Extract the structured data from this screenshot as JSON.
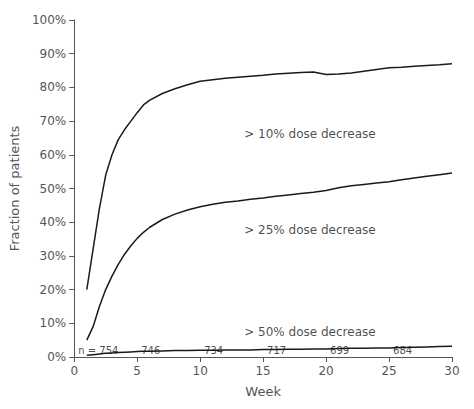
{
  "chart_data": {
    "type": "line",
    "xlabel": "Week",
    "ylabel": "Fraction of patients",
    "xlim": [
      0,
      30
    ],
    "ylim": [
      0,
      1.0
    ],
    "xticks": [
      0,
      5,
      10,
      15,
      20,
      25,
      30
    ],
    "yticks": [
      {
        "value": 0,
        "label": "0%"
      },
      {
        "value": 0.1,
        "label": "10%"
      },
      {
        "value": 0.2,
        "label": "20%"
      },
      {
        "value": 0.3,
        "label": "30%"
      },
      {
        "value": 0.4,
        "label": "40%"
      },
      {
        "value": 0.5,
        "label": "50%"
      },
      {
        "value": 0.6,
        "label": "60%"
      },
      {
        "value": 0.7,
        "label": "70%"
      },
      {
        "value": 0.8,
        "label": "80%"
      },
      {
        "value": 0.9,
        "label": "90%"
      },
      {
        "value": 1.0,
        "label": "100%"
      }
    ],
    "grid": false,
    "color": "#1a1a1a",
    "x": [
      1,
      1.5,
      2,
      2.5,
      3,
      3.5,
      4,
      4.5,
      5,
      5.5,
      6,
      7,
      8,
      9,
      10,
      11,
      12,
      13,
      14,
      15,
      16,
      17,
      18,
      19,
      20,
      21,
      22,
      23,
      24,
      25,
      26,
      27,
      28,
      29,
      30
    ],
    "series": [
      {
        "color": "#1a1a1a",
        "values": [
          0.2,
          0.32,
          0.44,
          0.54,
          0.6,
          0.645,
          0.675,
          0.7,
          0.725,
          0.748,
          0.762,
          0.782,
          0.796,
          0.808,
          0.818,
          0.823,
          0.827,
          0.83,
          0.833,
          0.836,
          0.84,
          0.842,
          0.844,
          0.846,
          0.838,
          0.84,
          0.843,
          0.848,
          0.853,
          0.858,
          0.86,
          0.863,
          0.865,
          0.867,
          0.87
        ]
      },
      {
        "color": "#1a1a1a",
        "values": [
          0.05,
          0.09,
          0.15,
          0.2,
          0.24,
          0.275,
          0.305,
          0.33,
          0.352,
          0.37,
          0.385,
          0.408,
          0.424,
          0.436,
          0.446,
          0.453,
          0.459,
          0.463,
          0.468,
          0.472,
          0.477,
          0.481,
          0.485,
          0.489,
          0.494,
          0.502,
          0.508,
          0.512,
          0.516,
          0.52,
          0.526,
          0.531,
          0.536,
          0.541,
          0.546
        ]
      },
      {
        "color": "#1a1a1a",
        "values": [
          0.005,
          0.007,
          0.009,
          0.011,
          0.012,
          0.013,
          0.014,
          0.015,
          0.016,
          0.017,
          0.017,
          0.018,
          0.019,
          0.019,
          0.02,
          0.02,
          0.021,
          0.021,
          0.021,
          0.022,
          0.022,
          0.023,
          0.023,
          0.024,
          0.024,
          0.025,
          0.026,
          0.026,
          0.027,
          0.027,
          0.028,
          0.029,
          0.03,
          0.031,
          0.032
        ]
      }
    ],
    "annotations": [
      {
        "text": "> 10% dose decrease",
        "x": 13.5,
        "y": 0.645
      },
      {
        "text": "> 25% dose decrease",
        "x": 13.5,
        "y": 0.36
      },
      {
        "text": "> 50% dose decrease",
        "x": 13.5,
        "y": 0.055
      }
    ],
    "n_labels": [
      {
        "x": 0,
        "text": "n = 754"
      },
      {
        "x": 5,
        "text": "746"
      },
      {
        "x": 10,
        "text": "734"
      },
      {
        "x": 15,
        "text": "717"
      },
      {
        "x": 20,
        "text": "699"
      },
      {
        "x": 25,
        "text": "684"
      }
    ]
  }
}
